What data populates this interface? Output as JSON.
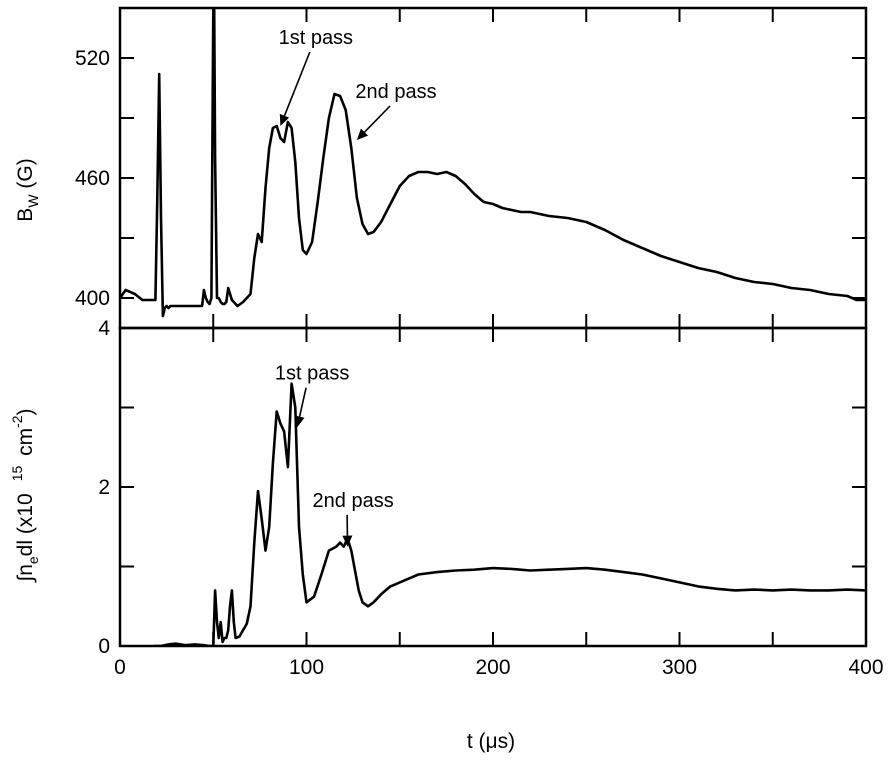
{
  "chart_data": [
    {
      "type": "line",
      "panel": "top",
      "ylabel": "B",
      "ylabel_sub": "W",
      "ylabel_unit": " (G)",
      "xlabel": "",
      "xlim": [
        0,
        400
      ],
      "ylim": [
        385,
        545
      ],
      "xticks": [
        0,
        50,
        100,
        150,
        200,
        250,
        300,
        350,
        400
      ],
      "yticks": [
        400,
        430,
        460,
        490,
        520
      ],
      "ytick_labels": [
        "400",
        "460",
        "520"
      ],
      "grid": false,
      "series": [
        {
          "x": [
            0,
            3,
            8,
            12,
            16,
            19,
            20,
            21,
            22,
            23,
            24,
            25,
            26,
            27,
            30,
            35,
            40,
            44,
            45,
            46,
            47,
            48,
            49,
            49.5,
            50,
            50.5,
            51,
            52,
            53,
            54,
            55,
            56,
            57,
            58,
            60,
            63,
            66,
            70,
            72,
            74,
            76,
            78,
            80,
            82,
            84,
            86,
            88,
            90,
            92,
            94,
            96,
            98,
            100,
            103,
            106,
            109,
            112,
            115,
            118,
            121,
            124,
            127,
            130,
            133,
            136,
            140,
            145,
            150,
            155,
            160,
            165,
            170,
            175,
            180,
            185,
            190,
            195,
            200,
            205,
            210,
            215,
            220,
            230,
            240,
            250,
            260,
            270,
            280,
            290,
            300,
            310,
            320,
            330,
            340,
            350,
            360,
            370,
            380,
            390,
            395,
            400
          ],
          "y": [
            400,
            404,
            402,
            399,
            399,
            399,
            450,
            512,
            440,
            391,
            395,
            396,
            395,
            396,
            396,
            396,
            396,
            396,
            404,
            400,
            398,
            397,
            400,
            470,
            545,
            545,
            470,
            400,
            400,
            398,
            397,
            397,
            398,
            405,
            399,
            396,
            398,
            402,
            420,
            432,
            428,
            455,
            475,
            485,
            486,
            480,
            478,
            488,
            485,
            468,
            440,
            424,
            422,
            428,
            448,
            470,
            490,
            502,
            501,
            494,
            475,
            450,
            437,
            432,
            433,
            438,
            447,
            456,
            461,
            463,
            463,
            462,
            463,
            461,
            457,
            452,
            448,
            447,
            445,
            444,
            443,
            443,
            441,
            440,
            438,
            434,
            429,
            425,
            421,
            418,
            415,
            413,
            410,
            408,
            407,
            405,
            404,
            402,
            401,
            399,
            399
          ]
        }
      ],
      "annotations": [
        {
          "text": "1st pass",
          "x": 105,
          "y": 527,
          "target_x": 86,
          "target_y": 486
        },
        {
          "text": "2nd pass",
          "x": 148,
          "y": 500,
          "target_x": 127,
          "target_y": 479
        }
      ]
    },
    {
      "type": "line",
      "panel": "bottom",
      "ylabel": "∫n",
      "ylabel_sub": "e",
      "ylabel_unit": "dl (x10",
      "ylabel_sup": "15",
      "ylabel_unit2": " cm",
      "ylabel_sup2": "-2",
      "ylabel_close": ")",
      "xlabel": "t (μs)",
      "xlim": [
        0,
        400
      ],
      "ylim": [
        0,
        4
      ],
      "xticks": [
        0,
        50,
        100,
        150,
        200,
        250,
        300,
        350,
        400
      ],
      "xtick_labels": [
        "0",
        "100",
        "200",
        "300",
        "400"
      ],
      "yticks": [
        0,
        1,
        2,
        3,
        4
      ],
      "ytick_labels": [
        "0",
        "2",
        "4"
      ],
      "grid": false,
      "series": [
        {
          "x": [
            18,
            22,
            26,
            30,
            35,
            40,
            45,
            48,
            50,
            51,
            52,
            53,
            54,
            55,
            56,
            57,
            58,
            59,
            60,
            61,
            62,
            64,
            66,
            68,
            70,
            72,
            74,
            76,
            78,
            80,
            82,
            84,
            86,
            88,
            90,
            92,
            94,
            96,
            98,
            100,
            104,
            108,
            112,
            116,
            118,
            120,
            122,
            124,
            126,
            128,
            130,
            133,
            136,
            140,
            145,
            150,
            155,
            160,
            170,
            180,
            190,
            200,
            210,
            220,
            230,
            240,
            250,
            260,
            270,
            280,
            290,
            300,
            310,
            320,
            330,
            340,
            350,
            360,
            370,
            380,
            390,
            400
          ],
          "y": [
            0.0,
            0.0,
            0.02,
            0.03,
            0.01,
            0.02,
            0.01,
            0.0,
            0.0,
            0.7,
            0.3,
            0.1,
            0.3,
            0.05,
            0.1,
            0.1,
            0.2,
            0.5,
            0.7,
            0.3,
            0.1,
            0.12,
            0.2,
            0.28,
            0.5,
            1.3,
            1.95,
            1.6,
            1.2,
            1.5,
            2.3,
            2.95,
            2.8,
            2.7,
            2.25,
            3.3,
            3.0,
            1.5,
            0.9,
            0.55,
            0.62,
            0.9,
            1.2,
            1.25,
            1.3,
            1.25,
            1.35,
            1.2,
            0.95,
            0.7,
            0.55,
            0.5,
            0.55,
            0.65,
            0.75,
            0.8,
            0.85,
            0.9,
            0.93,
            0.95,
            0.96,
            0.98,
            0.97,
            0.95,
            0.96,
            0.97,
            0.98,
            0.96,
            0.93,
            0.9,
            0.85,
            0.8,
            0.75,
            0.72,
            0.7,
            0.71,
            0.7,
            0.71,
            0.7,
            0.7,
            0.71,
            0.7
          ]
        }
      ],
      "annotations": [
        {
          "text": "1st pass",
          "x": 103,
          "y": 3.35,
          "target_x": 95,
          "target_y": 2.75
        },
        {
          "text": "2nd pass",
          "x": 125,
          "y": 1.75,
          "target_x": 122,
          "target_y": 1.25
        }
      ]
    }
  ]
}
